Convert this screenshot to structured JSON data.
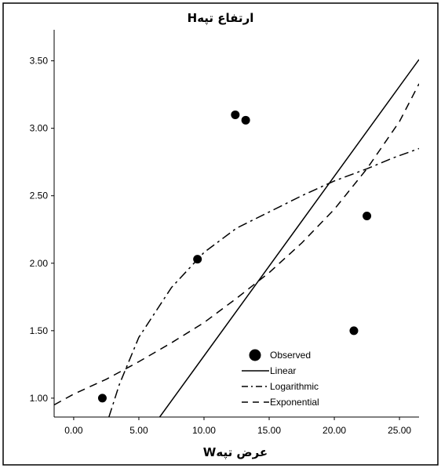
{
  "chart_data": {
    "type": "scatter",
    "title": "ارتفاع تپهH",
    "xlabel": "عرض تپهW",
    "ylabel": "",
    "xlim": [
      -1.5,
      26.5
    ],
    "ylim": [
      0.86,
      3.73
    ],
    "xticks": [
      "0.00",
      "5.00",
      "10.00",
      "15.00",
      "20.00",
      "25.00"
    ],
    "xtick_values": [
      0,
      5,
      10,
      15,
      20,
      25
    ],
    "yticks": [
      "1.00",
      "1.50",
      "2.00",
      "2.50",
      "3.00",
      "3.50"
    ],
    "ytick_values": [
      1,
      1.5,
      2,
      2.5,
      3,
      3.5
    ],
    "grid": false,
    "legend_position": "bottom-right",
    "series": [
      {
        "name": "Observed",
        "kind": "points",
        "x": [
          2.2,
          9.5,
          12.4,
          13.2,
          21.5,
          22.5
        ],
        "y": [
          1.0,
          2.03,
          3.1,
          3.06,
          1.5,
          2.35
        ]
      },
      {
        "name": "Linear",
        "kind": "line",
        "style": "solid",
        "x": [
          6.6,
          26.5
        ],
        "y": [
          0.86,
          3.51
        ]
      },
      {
        "name": "Logarithmic",
        "kind": "line",
        "style": "dashdot",
        "x": [
          2.7,
          3.5,
          5.0,
          7.5,
          10.0,
          12.5,
          15.0,
          17.5,
          20.0,
          22.5,
          24.5,
          26.5
        ],
        "y": [
          0.86,
          1.1,
          1.45,
          1.82,
          2.08,
          2.26,
          2.38,
          2.5,
          2.61,
          2.7,
          2.78,
          2.85
        ]
      },
      {
        "name": "Exponential",
        "kind": "line",
        "style": "dashed",
        "x": [
          -1.5,
          0,
          2.5,
          5,
          7.5,
          10,
          12.5,
          15,
          17.5,
          20,
          22.5,
          25,
          26.5
        ],
        "y": [
          0.95,
          1.03,
          1.14,
          1.27,
          1.41,
          1.56,
          1.74,
          1.93,
          2.15,
          2.4,
          2.7,
          3.05,
          3.33
        ]
      }
    ]
  }
}
